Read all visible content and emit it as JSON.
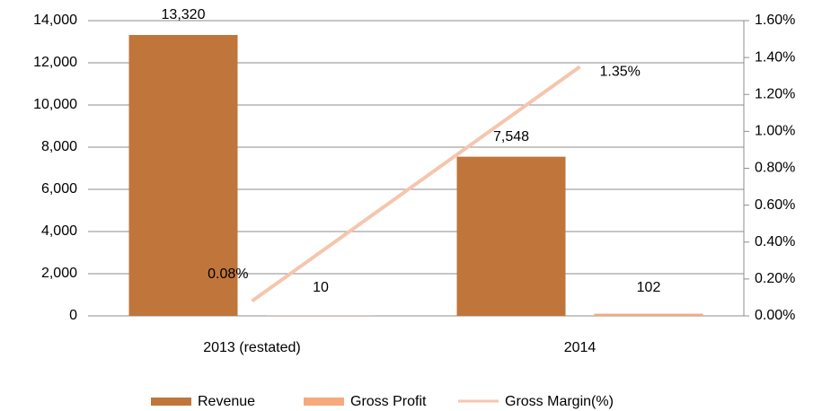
{
  "chart_data": {
    "type": "bar",
    "categories": [
      "2013 (restated)",
      "2014"
    ],
    "series": [
      {
        "name": "Revenue",
        "color": "#c0753a",
        "values": [
          13320,
          7548
        ],
        "value_labels": [
          "13,320",
          "7,548"
        ]
      },
      {
        "name": "Gross Profit",
        "color": "#f5a97c",
        "values": [
          10,
          102
        ],
        "value_labels": [
          "10",
          "102"
        ]
      },
      {
        "name": "Gross Margin(%)",
        "type": "line",
        "axis": "y2",
        "color": "#f5c5ad",
        "values": [
          0.08,
          1.35
        ],
        "value_labels": [
          "0.08%",
          "1.35%"
        ]
      }
    ],
    "ylim": [
      0,
      14000
    ],
    "yticks": [
      0,
      {
        "value": 2000,
        "label": "2,000"
      },
      {
        "value": 4000,
        "label": "4,000"
      },
      {
        "value": 6000,
        "label": "6,000"
      },
      {
        "value": 8000,
        "label": "8,000"
      },
      {
        "value": 10000,
        "label": "10,000"
      },
      {
        "value": 12000,
        "label": "12,000"
      },
      {
        "value": 14000,
        "label": "14,000"
      }
    ],
    "y2lim": [
      0,
      1.6
    ],
    "y2ticks": [
      {
        "value": 0,
        "label": "0.00%"
      },
      {
        "value": 0.2,
        "label": "0.20%"
      },
      {
        "value": 0.4,
        "label": "0.40%"
      },
      {
        "value": 0.6,
        "label": "0.60%"
      },
      {
        "value": 0.8,
        "label": "0.80%"
      },
      {
        "value": 1.0,
        "label": "1.00%"
      },
      {
        "value": 1.2,
        "label": "1.20%"
      },
      {
        "value": 1.4,
        "label": "1.40%"
      },
      {
        "value": 1.6,
        "label": "1.60%"
      }
    ],
    "grid": true,
    "legend": "bottom"
  }
}
